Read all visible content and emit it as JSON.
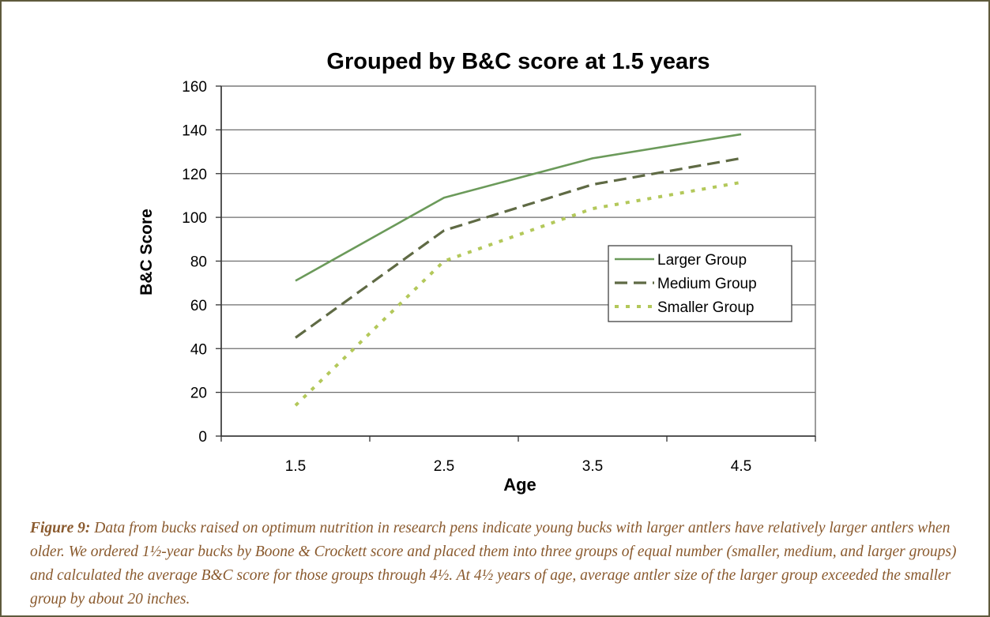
{
  "chart_data": {
    "type": "line",
    "title": "Grouped by B&C score at 1.5 years",
    "xlabel": "Age",
    "ylabel": "B&C Score",
    "categories": [
      "1.5",
      "2.5",
      "3.5",
      "4.5"
    ],
    "ylim": [
      0,
      160
    ],
    "yticks": [
      "0",
      "20",
      "40",
      "60",
      "80",
      "100",
      "120",
      "140",
      "160"
    ],
    "grid": true,
    "legend_position": "right",
    "series": [
      {
        "name": "Larger Group",
        "values": [
          71,
          109,
          127,
          138
        ],
        "color": "#6b9a5a",
        "style": "solid"
      },
      {
        "name": "Medium Group",
        "values": [
          45,
          94,
          115,
          127
        ],
        "color": "#5f6a44",
        "style": "dashed"
      },
      {
        "name": "Smaller Group",
        "values": [
          14,
          80,
          104,
          116
        ],
        "color": "#b3c85a",
        "style": "dotted"
      }
    ]
  },
  "caption": {
    "label": "Figure 9:",
    "text": " Data from bucks raised on optimum nutrition in research pens indicate young bucks with larger antlers have relatively larger antlers when older.  We ordered 1½-year bucks by Boone & Crockett score and placed them into three groups of equal number (smaller, medium, and larger groups) and calculated the average B&C score for those groups through 4½.  At 4½ years of age, average antler size of the larger group exceeded the smaller group by about 20 inches."
  }
}
